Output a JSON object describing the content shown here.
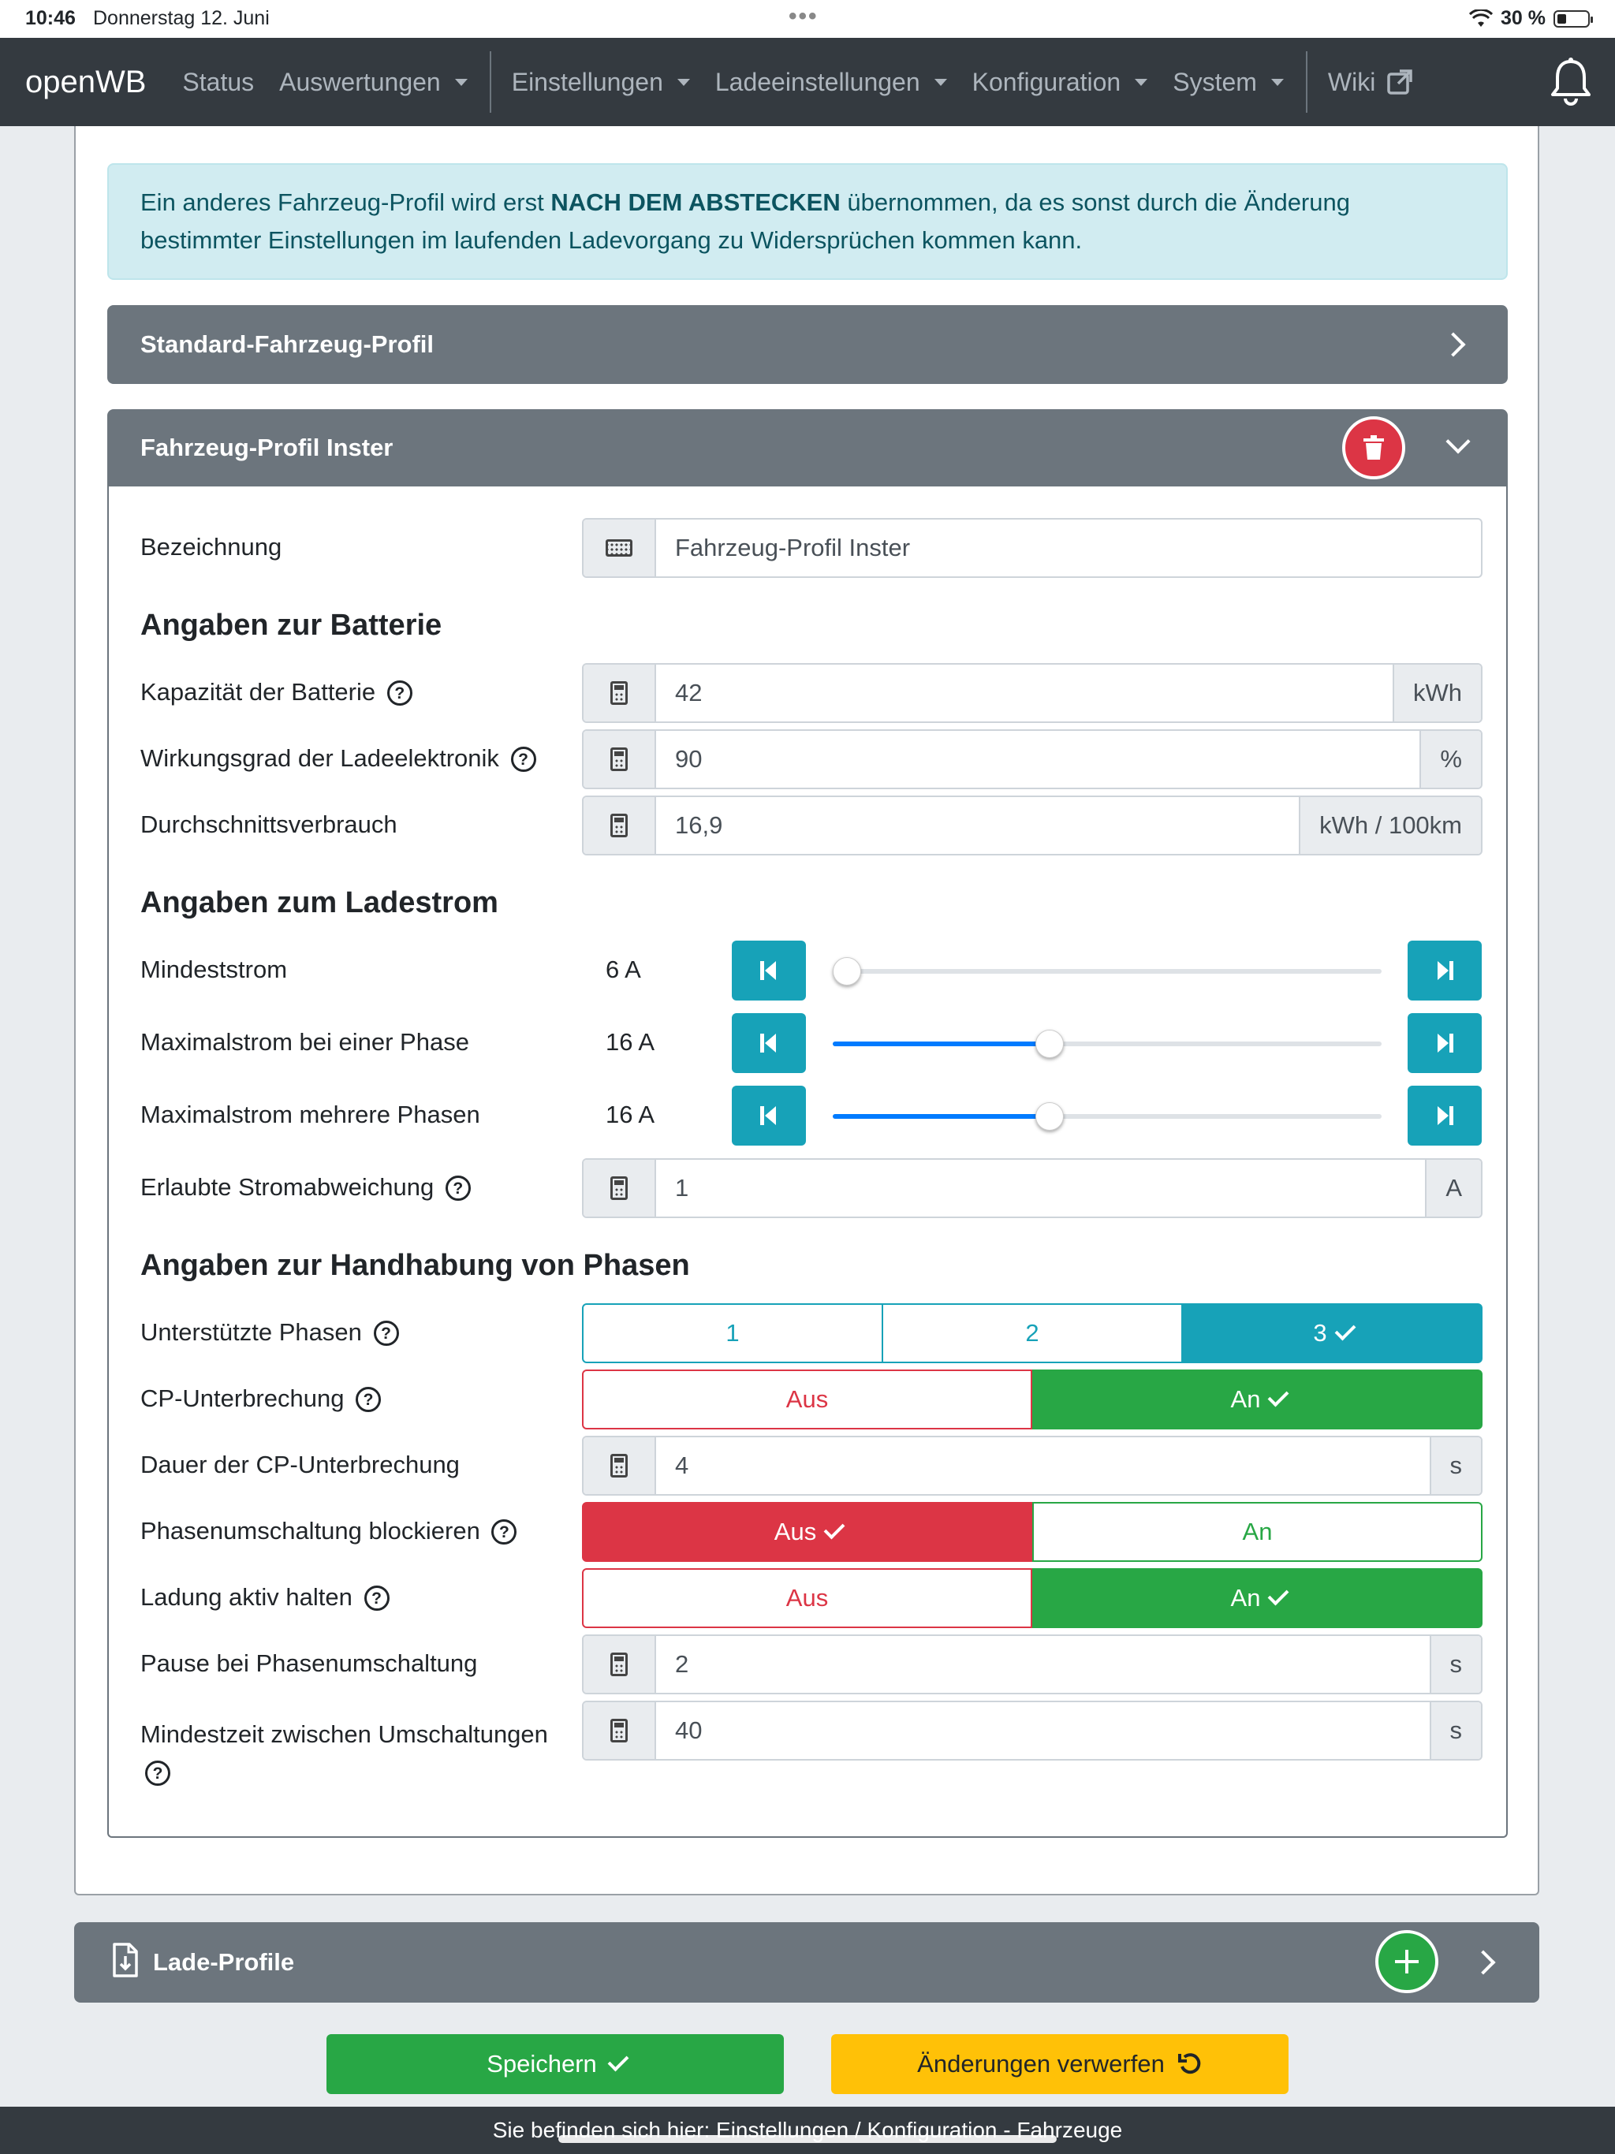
{
  "status_bar": {
    "time": "10:46",
    "date": "Donnerstag 12. Juni",
    "battery": "30 %"
  },
  "navbar": {
    "brand": "openWB",
    "items": [
      "Status",
      "Auswertungen",
      "Einstellungen",
      "Ladeeinstellungen",
      "Konfiguration",
      "System",
      "Wiki"
    ]
  },
  "alert": {
    "pre": "Ein anderes Fahrzeug-Profil wird erst ",
    "bold": "NACH DEM ABSTECKEN",
    "post": " übernommen, da es sonst durch die Änderung bestimmter Einstellungen im laufenden Ladevorgang zu Widersprüchen kommen kann."
  },
  "profiles": {
    "standard_title": "Standard-Fahrzeug-Profil",
    "open_title": "Fahrzeug-Profil Inster"
  },
  "form": {
    "bezeichnung_label": "Bezeichnung",
    "bezeichnung_value": "Fahrzeug-Profil Inster",
    "battery_heading": "Angaben zur Batterie",
    "capacity_label": "Kapazität der Batterie",
    "capacity_value": "42",
    "capacity_unit": "kWh",
    "efficiency_label": "Wirkungsgrad der Ladeelektronik",
    "efficiency_value": "90",
    "efficiency_unit": "%",
    "consumption_label": "Durchschnittsverbrauch",
    "consumption_value": "16,9",
    "consumption_unit": "kWh / 100km",
    "current_heading": "Angaben zum Ladestrom",
    "min_current_label": "Mindeststrom",
    "min_current_value": "6 A",
    "min_current_fraction": 0.0,
    "max_one_label": "Maximalstrom bei einer Phase",
    "max_one_value": "16 A",
    "max_one_fraction": 0.39,
    "max_multi_label": "Maximalstrom mehrere Phasen",
    "max_multi_value": "16 A",
    "max_multi_fraction": 0.39,
    "deviation_label": "Erlaubte Stromabweichung",
    "deviation_value": "1",
    "deviation_unit": "A",
    "phases_heading": "Angaben zur Handhabung von Phasen",
    "supported_phases_label": "Unterstützte Phasen",
    "phase_options": [
      "1",
      "2",
      "3"
    ],
    "cp_label": "CP-Unterbrechung",
    "cp_duration_label": "Dauer der CP-Unterbrechung",
    "cp_duration_value": "4",
    "cp_duration_unit": "s",
    "block_label": "Phasenumschaltung blockieren",
    "keep_active_label": "Ladung aktiv halten",
    "pause_label": "Pause bei Phasenumschaltung",
    "pause_value": "2",
    "pause_unit": "s",
    "min_time_label": "Mindestzeit zwischen Umschaltungen",
    "min_time_value": "40",
    "min_time_unit": "s",
    "off": "Aus",
    "on": "An"
  },
  "lade_profile_title": "Lade-Profile",
  "buttons": {
    "save": "Speichern",
    "discard": "Änderungen verwerfen"
  },
  "footer": "Sie befinden sich hier: Einstellungen / Konfiguration - Fahrzeuge",
  "colors": {
    "primary_dark": "#343a40",
    "info": "#17a2b8",
    "success": "#28a745",
    "danger": "#dc3545",
    "warning": "#ffc107"
  }
}
